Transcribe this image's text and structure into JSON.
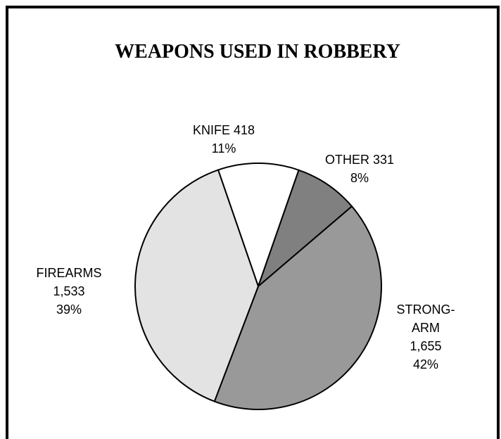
{
  "chart_data": {
    "type": "pie",
    "title": "WEAPONS USED IN ROBBERY",
    "slices": [
      {
        "label": "KNIFE",
        "value": 418,
        "value_text": "418",
        "percent": 11,
        "percent_text": "11%",
        "color": "#ffffff",
        "label_lines": [
          "KNIFE 418",
          "11%"
        ]
      },
      {
        "label": "OTHER",
        "value": 331,
        "value_text": "331",
        "percent": 8,
        "percent_text": "8%",
        "color": "#808080",
        "label_lines": [
          "OTHER 331",
          "8%"
        ]
      },
      {
        "label": "STRONG-ARM",
        "value": 1655,
        "value_text": "1,655",
        "percent": 42,
        "percent_text": "42%",
        "color": "#999999",
        "label_lines": [
          "STRONG-",
          "ARM",
          "1,655",
          "42%"
        ]
      },
      {
        "label": "FIREARMS",
        "value": 1533,
        "value_text": "1,533",
        "percent": 39,
        "percent_text": "39%",
        "color": "#e3e3e3",
        "label_lines": [
          "FIREARMS",
          "1,533",
          "39%"
        ]
      }
    ],
    "legend": "none",
    "outline_color": "#000000"
  }
}
